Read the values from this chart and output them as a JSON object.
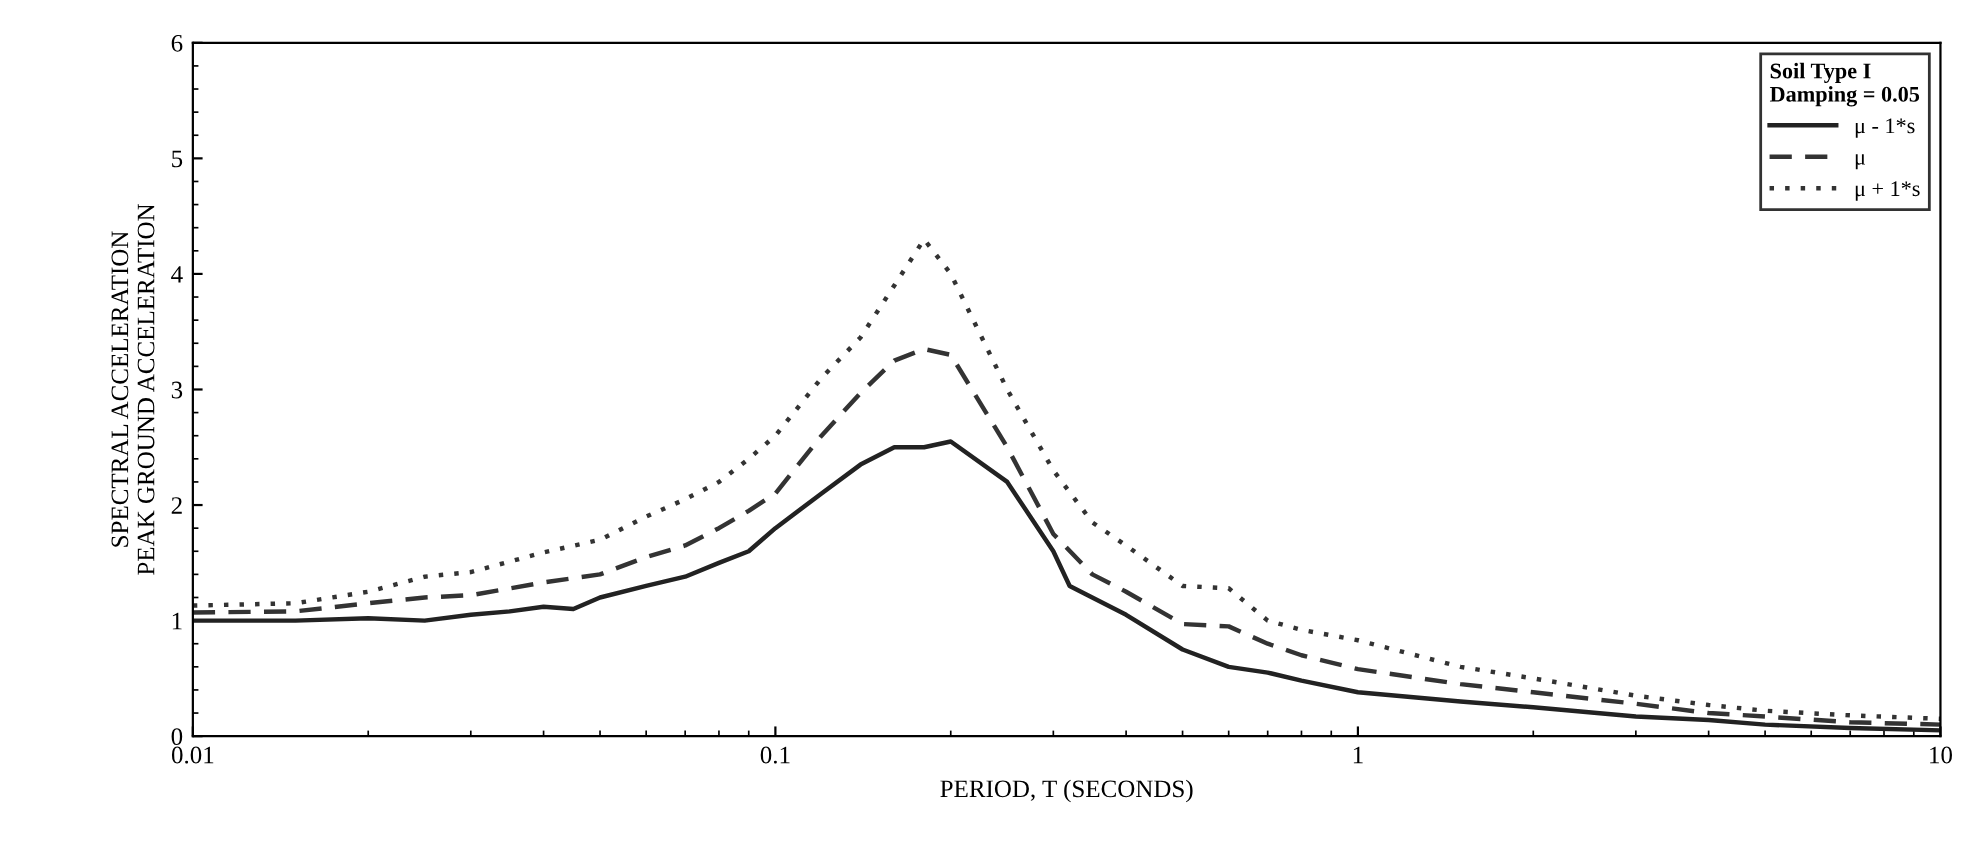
{
  "chart_data": {
    "type": "line",
    "xlabel": "PERIOD, T (SECONDS)",
    "ylabel": "SPECTRAL ACCELERATION\nPEAK GROUND ACCELERATION",
    "legend_title": "Soil Type I\nDamping = 0.05",
    "log": "x",
    "xlim": [
      0.01,
      10
    ],
    "xticks": [
      0.01,
      0.1,
      1,
      10
    ],
    "ylim": [
      0,
      6
    ],
    "yticks": [
      0,
      1,
      2,
      3,
      4,
      5,
      6
    ],
    "grid": false,
    "legend": "top right",
    "marker": "none",
    "series": [
      {
        "name": "μ - 1*s",
        "color": "#222222",
        "line_style": "solid",
        "x": [
          0.01,
          0.015,
          0.02,
          0.025,
          0.03,
          0.035,
          0.04,
          0.045,
          0.05,
          0.06,
          0.07,
          0.08,
          0.09,
          0.1,
          0.12,
          0.14,
          0.16,
          0.18,
          0.2,
          0.25,
          0.3,
          0.32,
          0.4,
          0.5,
          0.6,
          0.7,
          0.8,
          1,
          1.5,
          2,
          3,
          4,
          5,
          7,
          10
        ],
        "values": [
          1.0,
          1.0,
          1.02,
          1.0,
          1.05,
          1.08,
          1.12,
          1.1,
          1.2,
          1.3,
          1.38,
          1.5,
          1.6,
          1.8,
          2.1,
          2.35,
          2.5,
          2.5,
          2.55,
          2.2,
          1.6,
          1.3,
          1.05,
          0.75,
          0.6,
          0.55,
          0.48,
          0.38,
          0.3,
          0.25,
          0.17,
          0.14,
          0.1,
          0.07,
          0.05
        ]
      },
      {
        "name": "μ",
        "color": "#333333",
        "line_style": "dashed",
        "x": [
          0.01,
          0.015,
          0.02,
          0.025,
          0.03,
          0.04,
          0.05,
          0.06,
          0.07,
          0.08,
          0.09,
          0.1,
          0.12,
          0.14,
          0.16,
          0.18,
          0.2,
          0.25,
          0.3,
          0.35,
          0.4,
          0.5,
          0.6,
          0.7,
          0.8,
          1,
          1.5,
          2,
          3,
          4,
          5,
          7,
          10
        ],
        "values": [
          1.07,
          1.08,
          1.15,
          1.2,
          1.22,
          1.33,
          1.4,
          1.55,
          1.65,
          1.8,
          1.95,
          2.1,
          2.6,
          2.97,
          3.25,
          3.35,
          3.3,
          2.5,
          1.75,
          1.4,
          1.25,
          0.97,
          0.95,
          0.8,
          0.7,
          0.58,
          0.45,
          0.38,
          0.28,
          0.2,
          0.17,
          0.12,
          0.1
        ]
      },
      {
        "name": "μ + 1*s",
        "color": "#333333",
        "line_style": "dotted",
        "x": [
          0.01,
          0.015,
          0.02,
          0.025,
          0.03,
          0.04,
          0.05,
          0.06,
          0.07,
          0.08,
          0.09,
          0.1,
          0.12,
          0.14,
          0.16,
          0.18,
          0.2,
          0.25,
          0.3,
          0.35,
          0.4,
          0.5,
          0.6,
          0.7,
          0.8,
          1,
          1.5,
          2,
          3,
          4,
          5,
          7,
          10
        ],
        "values": [
          1.13,
          1.15,
          1.25,
          1.38,
          1.42,
          1.59,
          1.7,
          1.9,
          2.05,
          2.2,
          2.4,
          2.6,
          3.1,
          3.45,
          3.9,
          4.3,
          4.0,
          3.0,
          2.3,
          1.85,
          1.65,
          1.3,
          1.28,
          1.0,
          0.92,
          0.83,
          0.6,
          0.5,
          0.35,
          0.27,
          0.22,
          0.18,
          0.15
        ]
      }
    ]
  }
}
